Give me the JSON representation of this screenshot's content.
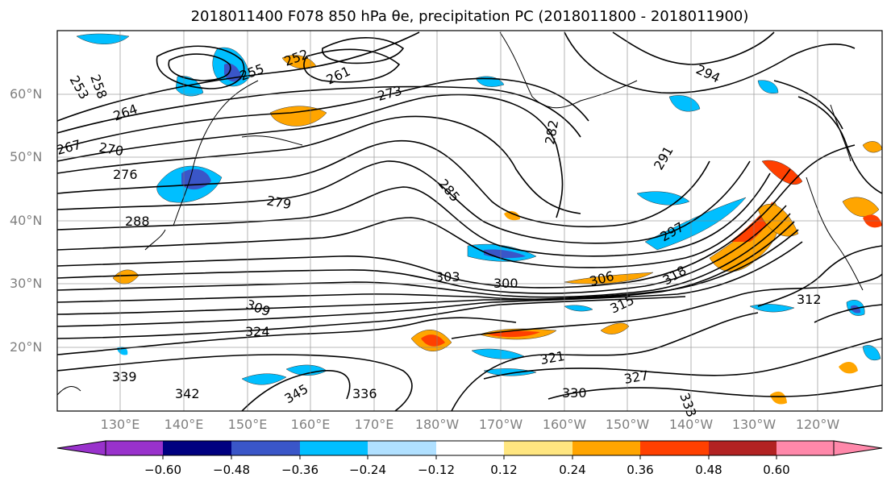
{
  "title": "2018011400 F078 850 hPa θe, precipitation PC (2018011800 - 2018011900)",
  "lat_labels": [
    "60°N",
    "50°N",
    "40°N",
    "30°N",
    "20°N"
  ],
  "lon_labels": [
    "130°E",
    "140°E",
    "150°E",
    "160°E",
    "170°E",
    "180°W",
    "170°W",
    "160°W",
    "150°W",
    "140°W",
    "130°W",
    "120°W"
  ],
  "contour_labels": [
    "253",
    "258",
    "255",
    "252",
    "261",
    "273",
    "264",
    "267",
    "270",
    "276",
    "279",
    "282",
    "285",
    "288",
    "291",
    "294",
    "297",
    "300",
    "303",
    "306",
    "309",
    "312",
    "315",
    "318",
    "321",
    "324",
    "327",
    "330",
    "333",
    "336",
    "339",
    "342",
    "345"
  ],
  "colorbar": {
    "ticks": [
      "−0.60",
      "−0.48",
      "−0.36",
      "−0.24",
      "−0.12",
      "0.12",
      "0.24",
      "0.36",
      "0.48",
      "0.60"
    ],
    "colors": [
      "#9932cc",
      "#000080",
      "#3a56c8",
      "#00bfff",
      "#b0e0ff",
      "#ffffff",
      "#ffe680",
      "#ffa500",
      "#ff4000",
      "#b22222",
      "#ff88aa"
    ]
  },
  "palette": {
    "contour": "#000000",
    "grid": "#808080",
    "coast": "#000000"
  }
}
